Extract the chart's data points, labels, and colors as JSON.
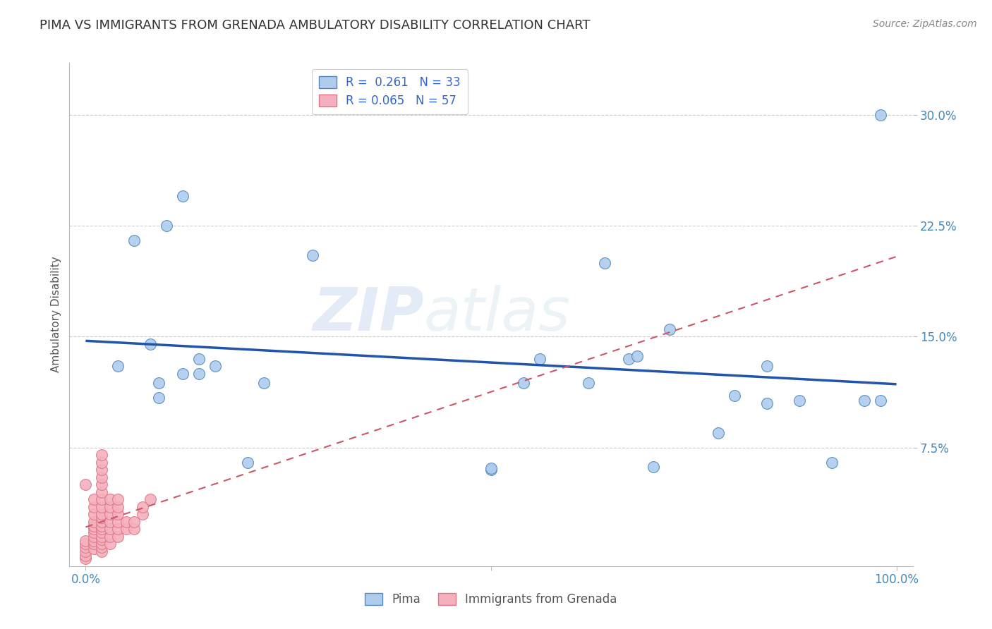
{
  "title": "PIMA VS IMMIGRANTS FROM GRENADA AMBULATORY DISABILITY CORRELATION CHART",
  "source": "Source: ZipAtlas.com",
  "ylabel": "Ambulatory Disability",
  "xlim": [
    -0.02,
    1.02
  ],
  "ylim": [
    -0.005,
    0.335
  ],
  "yticks": [
    0.075,
    0.15,
    0.225,
    0.3
  ],
  "ytick_labels": [
    "7.5%",
    "15.0%",
    "22.5%",
    "30.0%"
  ],
  "xticks": [
    0.0,
    0.5,
    1.0
  ],
  "xtick_labels": [
    "0.0%",
    "",
    "100.0%"
  ],
  "pima_R": 0.261,
  "pima_N": 33,
  "grenada_R": 0.065,
  "grenada_N": 57,
  "pima_color": "#aeccee",
  "pima_edge_color": "#5588bb",
  "pima_line_color": "#2255aa",
  "grenada_color": "#f5b0be",
  "grenada_edge_color": "#dd7788",
  "grenada_line_color": "#cc5566",
  "background_color": "#ffffff",
  "grid_color": "#cccccc",
  "pima_x": [
    0.08,
    0.06,
    0.12,
    0.28,
    0.04,
    0.14,
    0.14,
    0.5,
    0.54,
    0.56,
    0.67,
    0.68,
    0.72,
    0.78,
    0.8,
    0.84,
    0.84,
    0.88,
    0.09,
    0.09,
    0.1,
    0.12,
    0.16,
    0.2,
    0.22,
    0.62,
    0.64,
    0.7,
    0.92,
    0.96,
    0.98,
    0.5,
    0.98
  ],
  "pima_y": [
    0.145,
    0.215,
    0.245,
    0.205,
    0.13,
    0.135,
    0.125,
    0.06,
    0.119,
    0.135,
    0.135,
    0.137,
    0.155,
    0.085,
    0.11,
    0.105,
    0.13,
    0.107,
    0.119,
    0.109,
    0.225,
    0.125,
    0.13,
    0.065,
    0.119,
    0.119,
    0.2,
    0.062,
    0.065,
    0.107,
    0.107,
    0.061,
    0.3
  ],
  "grenada_x": [
    0.0,
    0.0,
    0.0,
    0.0,
    0.0,
    0.0,
    0.0,
    0.01,
    0.01,
    0.01,
    0.01,
    0.01,
    0.01,
    0.01,
    0.01,
    0.01,
    0.01,
    0.01,
    0.02,
    0.02,
    0.02,
    0.02,
    0.02,
    0.02,
    0.02,
    0.02,
    0.02,
    0.02,
    0.02,
    0.02,
    0.02,
    0.02,
    0.02,
    0.02,
    0.02,
    0.02,
    0.02,
    0.03,
    0.03,
    0.03,
    0.03,
    0.03,
    0.03,
    0.03,
    0.04,
    0.04,
    0.04,
    0.04,
    0.04,
    0.04,
    0.05,
    0.05,
    0.06,
    0.06,
    0.07,
    0.07,
    0.08
  ],
  "grenada_y": [
    0.0,
    0.002,
    0.005,
    0.008,
    0.01,
    0.012,
    0.05,
    0.007,
    0.01,
    0.012,
    0.015,
    0.018,
    0.02,
    0.022,
    0.025,
    0.03,
    0.035,
    0.04,
    0.005,
    0.008,
    0.01,
    0.013,
    0.015,
    0.018,
    0.02,
    0.022,
    0.025,
    0.028,
    0.03,
    0.035,
    0.04,
    0.045,
    0.05,
    0.055,
    0.06,
    0.065,
    0.07,
    0.01,
    0.015,
    0.02,
    0.025,
    0.03,
    0.035,
    0.04,
    0.015,
    0.02,
    0.025,
    0.03,
    0.035,
    0.04,
    0.02,
    0.025,
    0.02,
    0.025,
    0.03,
    0.035,
    0.04
  ],
  "watermark_zip": "ZIP",
  "watermark_atlas": "atlas",
  "title_fontsize": 13,
  "axis_label_fontsize": 11,
  "tick_fontsize": 12,
  "source_fontsize": 10
}
